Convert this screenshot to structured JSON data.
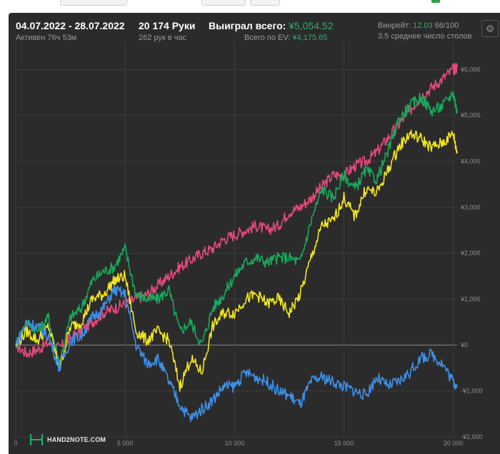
{
  "header": {
    "date_range": "04.07.2022 - 28.07.2022",
    "active_time": "Активен 76ч 53м",
    "hands": "20 174 Руки",
    "hands_per_hour": "262 рук в час",
    "won_label": "Выиграл всего:",
    "won_value": "¥5,054.52",
    "ev_label": "Всего по EV:",
    "ev_value": "¥4,175.65",
    "winrate_label": "Винрейт:",
    "winrate_value": "12.03",
    "winrate_extra": "66/100",
    "tables_text": "3.5 среднее число столов"
  },
  "settings_icon": "gear-icon",
  "logo": {
    "icon": "h2n-logo-icon",
    "text": "HAND2NOTE.COM"
  },
  "colors": {
    "background": "#2b2b2b",
    "grid": "#3c3c3c",
    "zero_line": "#8a8a8a",
    "won": "#19a95c",
    "ev": "#f1e520",
    "allin_ev": "#e44a7a",
    "showdown": "#3d8fe8"
  },
  "chart_data": {
    "type": "line",
    "xlim": [
      0,
      20174
    ],
    "ylim": [
      -2000,
      6300
    ],
    "x_ticks": [
      {
        "value": 0,
        "label": "0"
      },
      {
        "value": 5000,
        "label": "5 000"
      },
      {
        "value": 10000,
        "label": "10 000"
      },
      {
        "value": 15000,
        "label": "15 000"
      },
      {
        "value": 20000,
        "label": "20 000"
      }
    ],
    "y_ticks": [
      {
        "value": 6000,
        "label": "¥6,000"
      },
      {
        "value": 5000,
        "label": "¥5,000"
      },
      {
        "value": 4000,
        "label": "¥4,000"
      },
      {
        "value": 3000,
        "label": "¥3,000"
      },
      {
        "value": 2000,
        "label": "¥2,000"
      },
      {
        "value": 1000,
        "label": "¥1,000"
      },
      {
        "value": 0,
        "label": "¥0"
      },
      {
        "value": -1000,
        "label": "-¥1,000"
      },
      {
        "value": -2000,
        "label": "-¥2,000"
      }
    ],
    "x": [
      0,
      500,
      1000,
      1500,
      2000,
      2500,
      3000,
      3500,
      4000,
      4500,
      5000,
      5500,
      6000,
      6500,
      7000,
      7500,
      8000,
      8500,
      9000,
      9500,
      10000,
      10500,
      11000,
      11500,
      12000,
      12500,
      13000,
      13500,
      14000,
      14500,
      15000,
      15500,
      16000,
      16500,
      17000,
      17500,
      18000,
      18500,
      19000,
      19500,
      20000,
      20174
    ],
    "series": [
      {
        "color": "#e44a7a",
        "values": [
          0,
          -180,
          -100,
          50,
          -80,
          150,
          300,
          500,
          700,
          800,
          900,
          1000,
          1100,
          1300,
          1500,
          1700,
          1850,
          2000,
          2100,
          2300,
          2400,
          2500,
          2600,
          2500,
          2600,
          2900,
          3000,
          3200,
          3450,
          3700,
          3700,
          3900,
          4000,
          4200,
          4500,
          4800,
          5100,
          5400,
          5600,
          5800,
          6000,
          6050
        ]
      },
      {
        "color": "#19a95c",
        "values": [
          0,
          500,
          300,
          600,
          -400,
          600,
          800,
          1400,
          1600,
          1700,
          2100,
          1100,
          1000,
          1000,
          1200,
          300,
          500,
          0,
          800,
          1100,
          1500,
          1800,
          1900,
          1800,
          1900,
          1900,
          1800,
          2700,
          3400,
          3200,
          3700,
          3400,
          3800,
          3600,
          4200,
          4900,
          5200,
          5400,
          5100,
          5200,
          5500,
          5054
        ]
      },
      {
        "color": "#f1e520",
        "values": [
          0,
          300,
          100,
          400,
          -500,
          400,
          500,
          1000,
          1100,
          1400,
          1500,
          300,
          100,
          300,
          100,
          -900,
          -300,
          -600,
          400,
          700,
          700,
          1000,
          1100,
          900,
          1000,
          700,
          1100,
          1900,
          2600,
          2700,
          3200,
          2800,
          3400,
          3300,
          3800,
          4300,
          4600,
          4500,
          4300,
          4400,
          4600,
          4175
        ]
      },
      {
        "color": "#3d8fe8",
        "values": [
          0,
          500,
          400,
          200,
          -500,
          100,
          200,
          600,
          800,
          1200,
          1100,
          0,
          -400,
          -300,
          -800,
          -1300,
          -1600,
          -1400,
          -1200,
          -900,
          -900,
          -600,
          -700,
          -800,
          -1000,
          -1100,
          -1300,
          -800,
          -700,
          -800,
          -900,
          -1000,
          -1100,
          -700,
          -900,
          -800,
          -600,
          -300,
          -200,
          -400,
          -800,
          -900
        ]
      }
    ]
  }
}
